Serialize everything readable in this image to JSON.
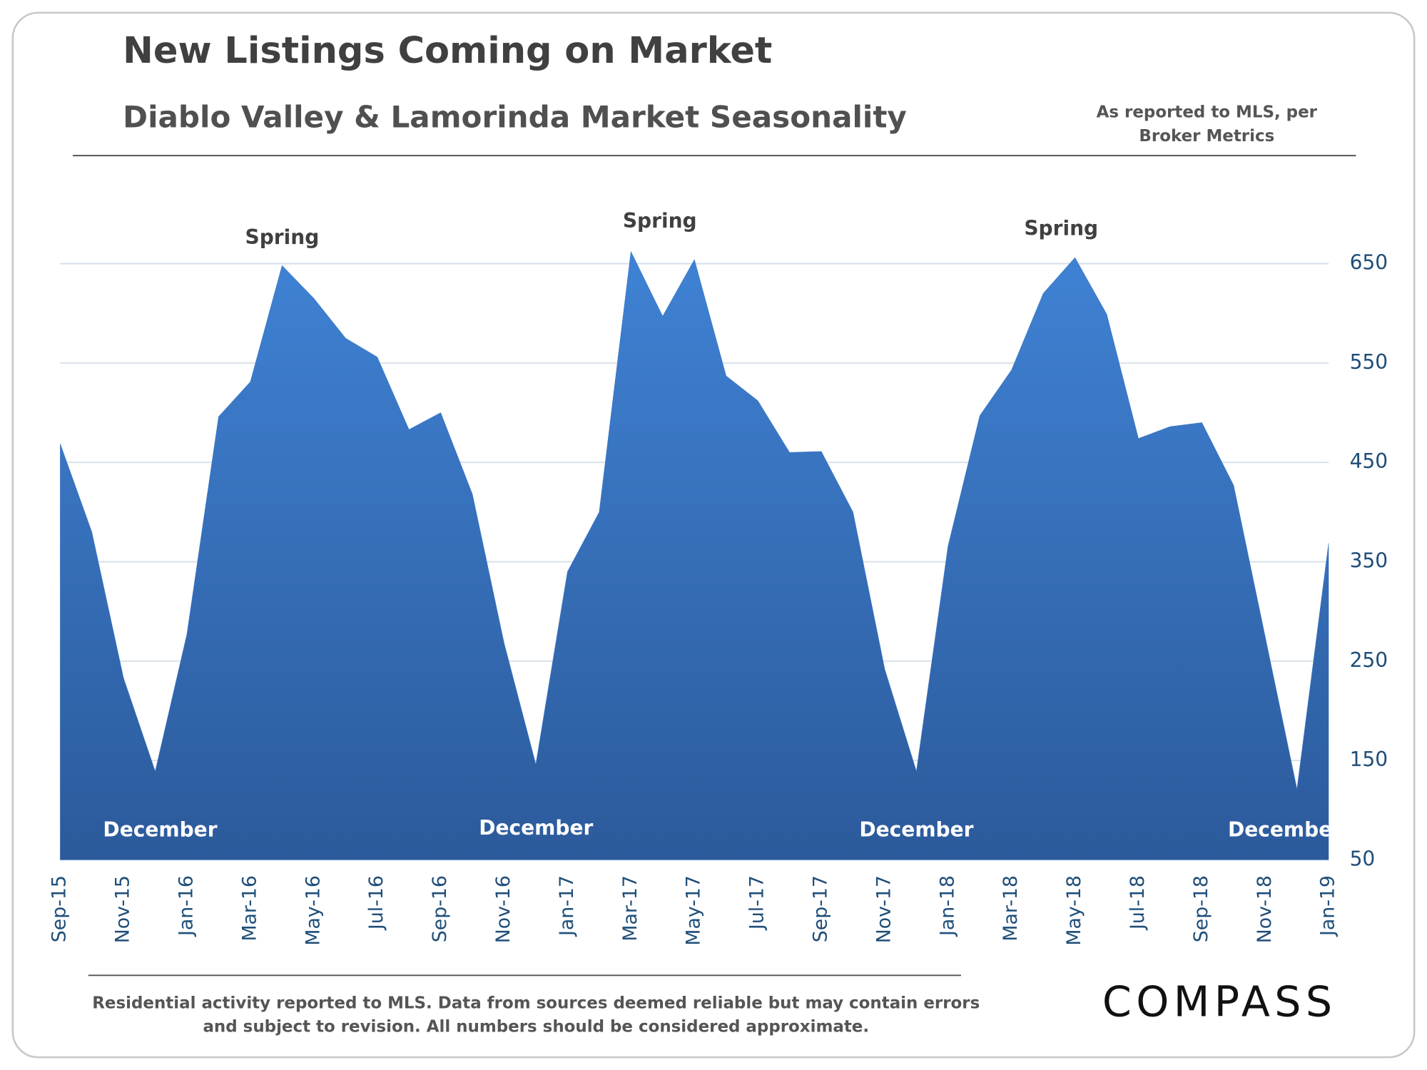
{
  "chart_data": {
    "type": "area",
    "title": "New Listings Coming on Market",
    "subtitle": "Diablo Valley & Lamorinda Market Seasonality",
    "source_note": [
      "As reported to MLS, per",
      "Broker Metrics"
    ],
    "footnote": [
      "Residential activity reported to MLS. Data from sources deemed reliable but may contain errors",
      "and subject to revision. All numbers should be considered approximate."
    ],
    "logo": "COMPASS",
    "annotations": [
      "Spring",
      "Spring",
      "Spring",
      "December",
      "December",
      "December",
      "December"
    ],
    "categories": [
      "Sep-15",
      null,
      "Nov-15",
      null,
      "Jan-16",
      null,
      "Mar-16",
      null,
      "May-16",
      null,
      "Jul-16",
      null,
      "Sep-16",
      null,
      "Nov-16",
      null,
      "Jan-17",
      null,
      "Mar-17",
      null,
      "May-17",
      null,
      "Jul-17",
      null,
      "Sep-17",
      null,
      "Nov-17",
      null,
      "Jan-18",
      null,
      "Mar-18",
      null,
      "May-18",
      null,
      "Jul-18",
      null,
      "Sep-18",
      null,
      "Nov-18",
      null,
      "Jan-19"
    ],
    "series": [
      {
        "color": "#3b78c8",
        "values": [
          469,
          380,
          233,
          139,
          277,
          496,
          531,
          648,
          615,
          575,
          556,
          483,
          500,
          418,
          268,
          146,
          340,
          400,
          662,
          597,
          654,
          537,
          512,
          460,
          461,
          400,
          242,
          139,
          366,
          497,
          543,
          620,
          656,
          599,
          474,
          486,
          490,
          427,
          274,
          121,
          369
        ]
      }
    ],
    "ylim": [
      50,
      700
    ],
    "yticks": [
      50,
      150,
      250,
      350,
      450,
      550,
      650
    ],
    "grid": true
  }
}
